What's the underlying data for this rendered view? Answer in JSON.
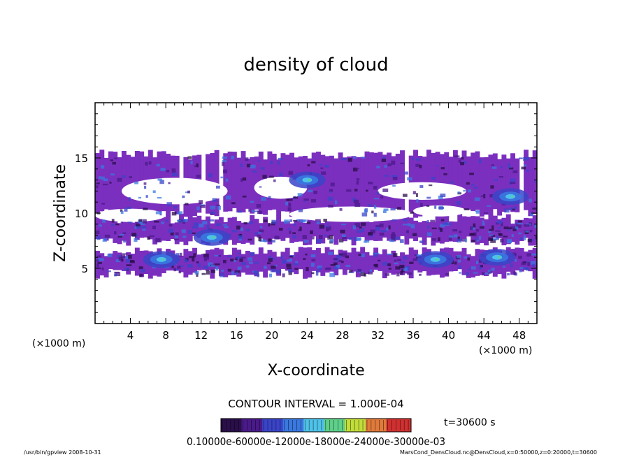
{
  "chart_data": {
    "type": "heatmap",
    "title": "density of cloud",
    "xlabel": "X-coordinate",
    "ylabel": "Z-coordinate",
    "x_unit_left": "(×1000 m)",
    "x_unit_right": "(×1000 m)",
    "xlim": [
      0,
      50
    ],
    "ylim": [
      0,
      20
    ],
    "x_ticks": [
      "4",
      "8",
      "12",
      "16",
      "20",
      "24",
      "28",
      "32",
      "36",
      "40",
      "44",
      "48"
    ],
    "y_ticks": [
      "5",
      "10",
      "15"
    ],
    "contour_interval_label": "CONTOUR INTERVAL = 1.000E-04",
    "time_label": "t=30600 s",
    "colorbar_labels_text": "0.10000e-60000e-12000e-18000e-24000e-30000e-03",
    "colorbar_levels": [
      0.0001,
      0.0006,
      0.0012,
      0.0018,
      0.0024,
      0.003
    ],
    "colormap": [
      "#2a0f4a",
      "#4a1a8a",
      "#3a44c8",
      "#3a78e0",
      "#4ec2e8",
      "#5fd08a",
      "#c2dc3a",
      "#e07a3a",
      "#d03030"
    ],
    "background_fill": "#7b2fbe",
    "cloud_layers": [
      {
        "z_bottom": 10.0,
        "z_top": 15.3,
        "mean_density": 0.0002
      },
      {
        "z_bottom": 7.5,
        "z_top": 9.5,
        "mean_density": 0.00015
      },
      {
        "z_bottom": 4.5,
        "z_top": 6.5,
        "mean_density": 0.0004
      }
    ],
    "hotspots": [
      {
        "x": 7.5,
        "z": 5.8,
        "density": 0.0009
      },
      {
        "x": 13.2,
        "z": 7.8,
        "density": 0.0009
      },
      {
        "x": 38.5,
        "z": 5.8,
        "density": 0.0008
      },
      {
        "x": 45.5,
        "z": 6.0,
        "density": 0.0007
      },
      {
        "x": 47.0,
        "z": 11.5,
        "density": 0.0007
      },
      {
        "x": 24.0,
        "z": 13.0,
        "density": 0.0005
      }
    ]
  },
  "footer": {
    "left": "/usr/bin/gpview   2008-10-31",
    "right": "MarsCond_DensCloud.nc@DensCloud,x=0:50000,z=0:20000,t=30600"
  }
}
